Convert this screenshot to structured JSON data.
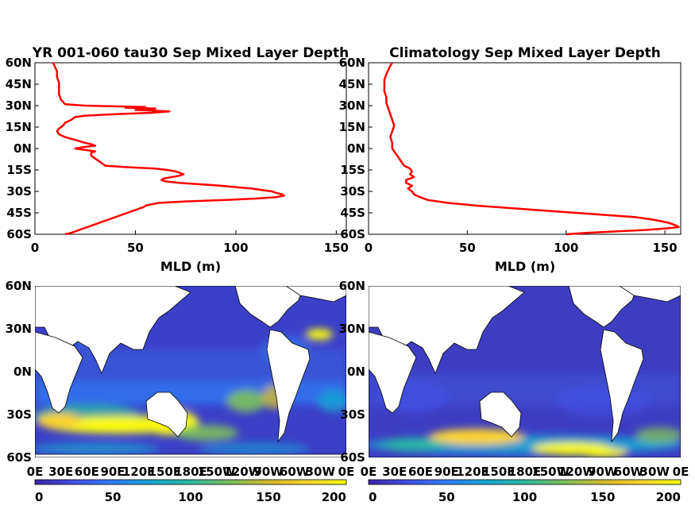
{
  "colors": {
    "profile_line": "#ff0000",
    "colormap": [
      "#3e26a8",
      "#4350e4",
      "#2f7ff7",
      "#17a6d3",
      "#2cbb9f",
      "#7cc05d",
      "#d3ba2e",
      "#fcd42e",
      "#f9fb0e"
    ]
  },
  "chart_data": [
    {
      "type": "line",
      "title": "YR 001-060 tau30 Sep Mixed Layer Depth",
      "xlabel": "MLD (m)",
      "xlim": [
        0,
        155
      ],
      "ylim": [
        -60,
        60
      ],
      "xticks": [
        "0",
        "50",
        "100",
        "150"
      ],
      "yticks": [
        "60N",
        "45N",
        "30N",
        "15N",
        "0N",
        "15S",
        "30S",
        "45S",
        "60S"
      ],
      "series": [
        {
          "lat": [
            60,
            57,
            54,
            50,
            46,
            42,
            38,
            34,
            31,
            30,
            29.5,
            29,
            28.5,
            28,
            27,
            26,
            25,
            24,
            23,
            22,
            21,
            20,
            18,
            16,
            14,
            12,
            10,
            8,
            6,
            4,
            3,
            2,
            1,
            0,
            -1,
            -2,
            -3,
            -5,
            -7,
            -9,
            -10,
            -12,
            -13,
            -14,
            -15,
            -16,
            -17,
            -18,
            -19,
            -20,
            -21,
            -22,
            -23,
            -24,
            -25,
            -26,
            -27,
            -28,
            -29,
            -30,
            -31,
            -32,
            -33,
            -34,
            -35,
            -36,
            -37,
            -38,
            -39,
            -40,
            -41,
            -42,
            -43,
            -44,
            -45,
            -46,
            -47,
            -48,
            -49,
            -50,
            -51,
            -52,
            -53,
            -54,
            -55,
            -56,
            -57,
            -58,
            -59,
            -60
          ],
          "mld": [
            9,
            10,
            11,
            11,
            12,
            12,
            12,
            13,
            15,
            25,
            40,
            55,
            45,
            60,
            50,
            67,
            58,
            40,
            25,
            20,
            19,
            18,
            15,
            14,
            12,
            11,
            12,
            15,
            20,
            25,
            28,
            30,
            24,
            20,
            25,
            30,
            28,
            28,
            30,
            32,
            33,
            35,
            45,
            60,
            66,
            70,
            72,
            74,
            72,
            68,
            64,
            63,
            65,
            72,
            82,
            92,
            100,
            108,
            113,
            118,
            120,
            123,
            124,
            120,
            110,
            95,
            75,
            62,
            58,
            55,
            54,
            52,
            50,
            48,
            46,
            44,
            42,
            40,
            38,
            36,
            34,
            32,
            30,
            28,
            26,
            24,
            22,
            20,
            18,
            15
          ]
        }
      ]
    },
    {
      "type": "line",
      "title": "Climatology Sep Mixed Layer Depth",
      "xlabel": "MLD (m)",
      "xlim": [
        0,
        158
      ],
      "ylim": [
        -60,
        60
      ],
      "xticks": [
        "0",
        "50",
        "100",
        "150"
      ],
      "yticks": [
        "60N",
        "45N",
        "30N",
        "15N",
        "0N",
        "15S",
        "30S",
        "45S",
        "60S"
      ],
      "series": [
        {
          "lat": [
            60,
            58,
            55,
            52,
            48,
            44,
            40,
            36,
            32,
            28,
            24,
            20,
            16,
            12,
            8,
            4,
            0,
            -4,
            -8,
            -12,
            -14,
            -16,
            -18,
            -20,
            -22,
            -24,
            -26,
            -28,
            -30,
            -32,
            -34,
            -36,
            -38,
            -40,
            -42,
            -44,
            -46,
            -48,
            -50,
            -52,
            -54,
            -55,
            -56,
            -57,
            -58,
            -59,
            -60
          ],
          "mld": [
            12,
            11,
            10,
            9,
            8,
            8,
            8,
            9,
            9,
            10,
            11,
            12,
            13,
            12,
            11,
            12,
            12,
            14,
            16,
            18,
            21,
            22,
            21,
            23,
            19,
            19,
            22,
            20,
            22,
            23,
            26,
            30,
            40,
            55,
            75,
            95,
            115,
            135,
            145,
            152,
            156,
            157,
            150,
            140,
            125,
            110,
            100
          ]
        }
      ]
    },
    {
      "type": "heatmap",
      "title": "",
      "colorbar_range": [
        0,
        200
      ],
      "colorbar_ticks": [
        "0",
        "50",
        "100",
        "150",
        "200"
      ],
      "xticks": [
        "0E",
        "30E",
        "60E",
        "90E",
        "120E",
        "150E",
        "180E",
        "150W",
        "120W",
        "90W",
        "60W",
        "30W",
        "0E"
      ],
      "yticks": [
        "60N",
        "30N",
        "0N",
        "30S",
        "60S"
      ],
      "xlim": [
        0,
        360
      ],
      "ylim": [
        -60,
        60
      ]
    },
    {
      "type": "heatmap",
      "title": "",
      "colorbar_range": [
        0,
        200
      ],
      "colorbar_ticks": [
        "0",
        "50",
        "100",
        "150",
        "200"
      ],
      "xticks": [
        "0E",
        "30E",
        "60E",
        "90E",
        "120E",
        "150E",
        "180E",
        "150W",
        "120W",
        "90W",
        "60W",
        "30W",
        "0E"
      ],
      "yticks": [
        "60N",
        "30N",
        "0N",
        "30S",
        "60S"
      ],
      "xlim": [
        0,
        360
      ],
      "ylim": [
        -60,
        60
      ]
    }
  ]
}
